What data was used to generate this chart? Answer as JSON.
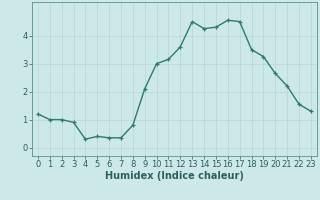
{
  "x": [
    0,
    1,
    2,
    3,
    4,
    5,
    6,
    7,
    8,
    9,
    10,
    11,
    12,
    13,
    14,
    15,
    16,
    17,
    18,
    19,
    20,
    21,
    22,
    23
  ],
  "y": [
    1.2,
    1.0,
    1.0,
    0.9,
    0.3,
    0.4,
    0.35,
    0.35,
    0.8,
    2.1,
    3.0,
    3.15,
    3.6,
    4.5,
    4.25,
    4.3,
    4.55,
    4.5,
    3.5,
    3.25,
    2.65,
    2.2,
    1.55,
    1.3
  ],
  "line_color": "#2e7b6e",
  "marker": "+",
  "marker_size": 3,
  "linewidth": 1.0,
  "xlabel": "Humidex (Indice chaleur)",
  "xlim": [
    -0.5,
    23.5
  ],
  "ylim": [
    -0.3,
    5.2
  ],
  "yticks": [
    0,
    1,
    2,
    3,
    4
  ],
  "xticks": [
    0,
    1,
    2,
    3,
    4,
    5,
    6,
    7,
    8,
    9,
    10,
    11,
    12,
    13,
    14,
    15,
    16,
    17,
    18,
    19,
    20,
    21,
    22,
    23
  ],
  "bg_color": "#cce8e8",
  "grid_color_major": "#b8d4d4",
  "grid_color_minor": "#b8d4d4",
  "spine_color": "#5a9090",
  "xlabel_fontsize": 7,
  "tick_fontsize": 6,
  "tick_color": "#2e6060"
}
